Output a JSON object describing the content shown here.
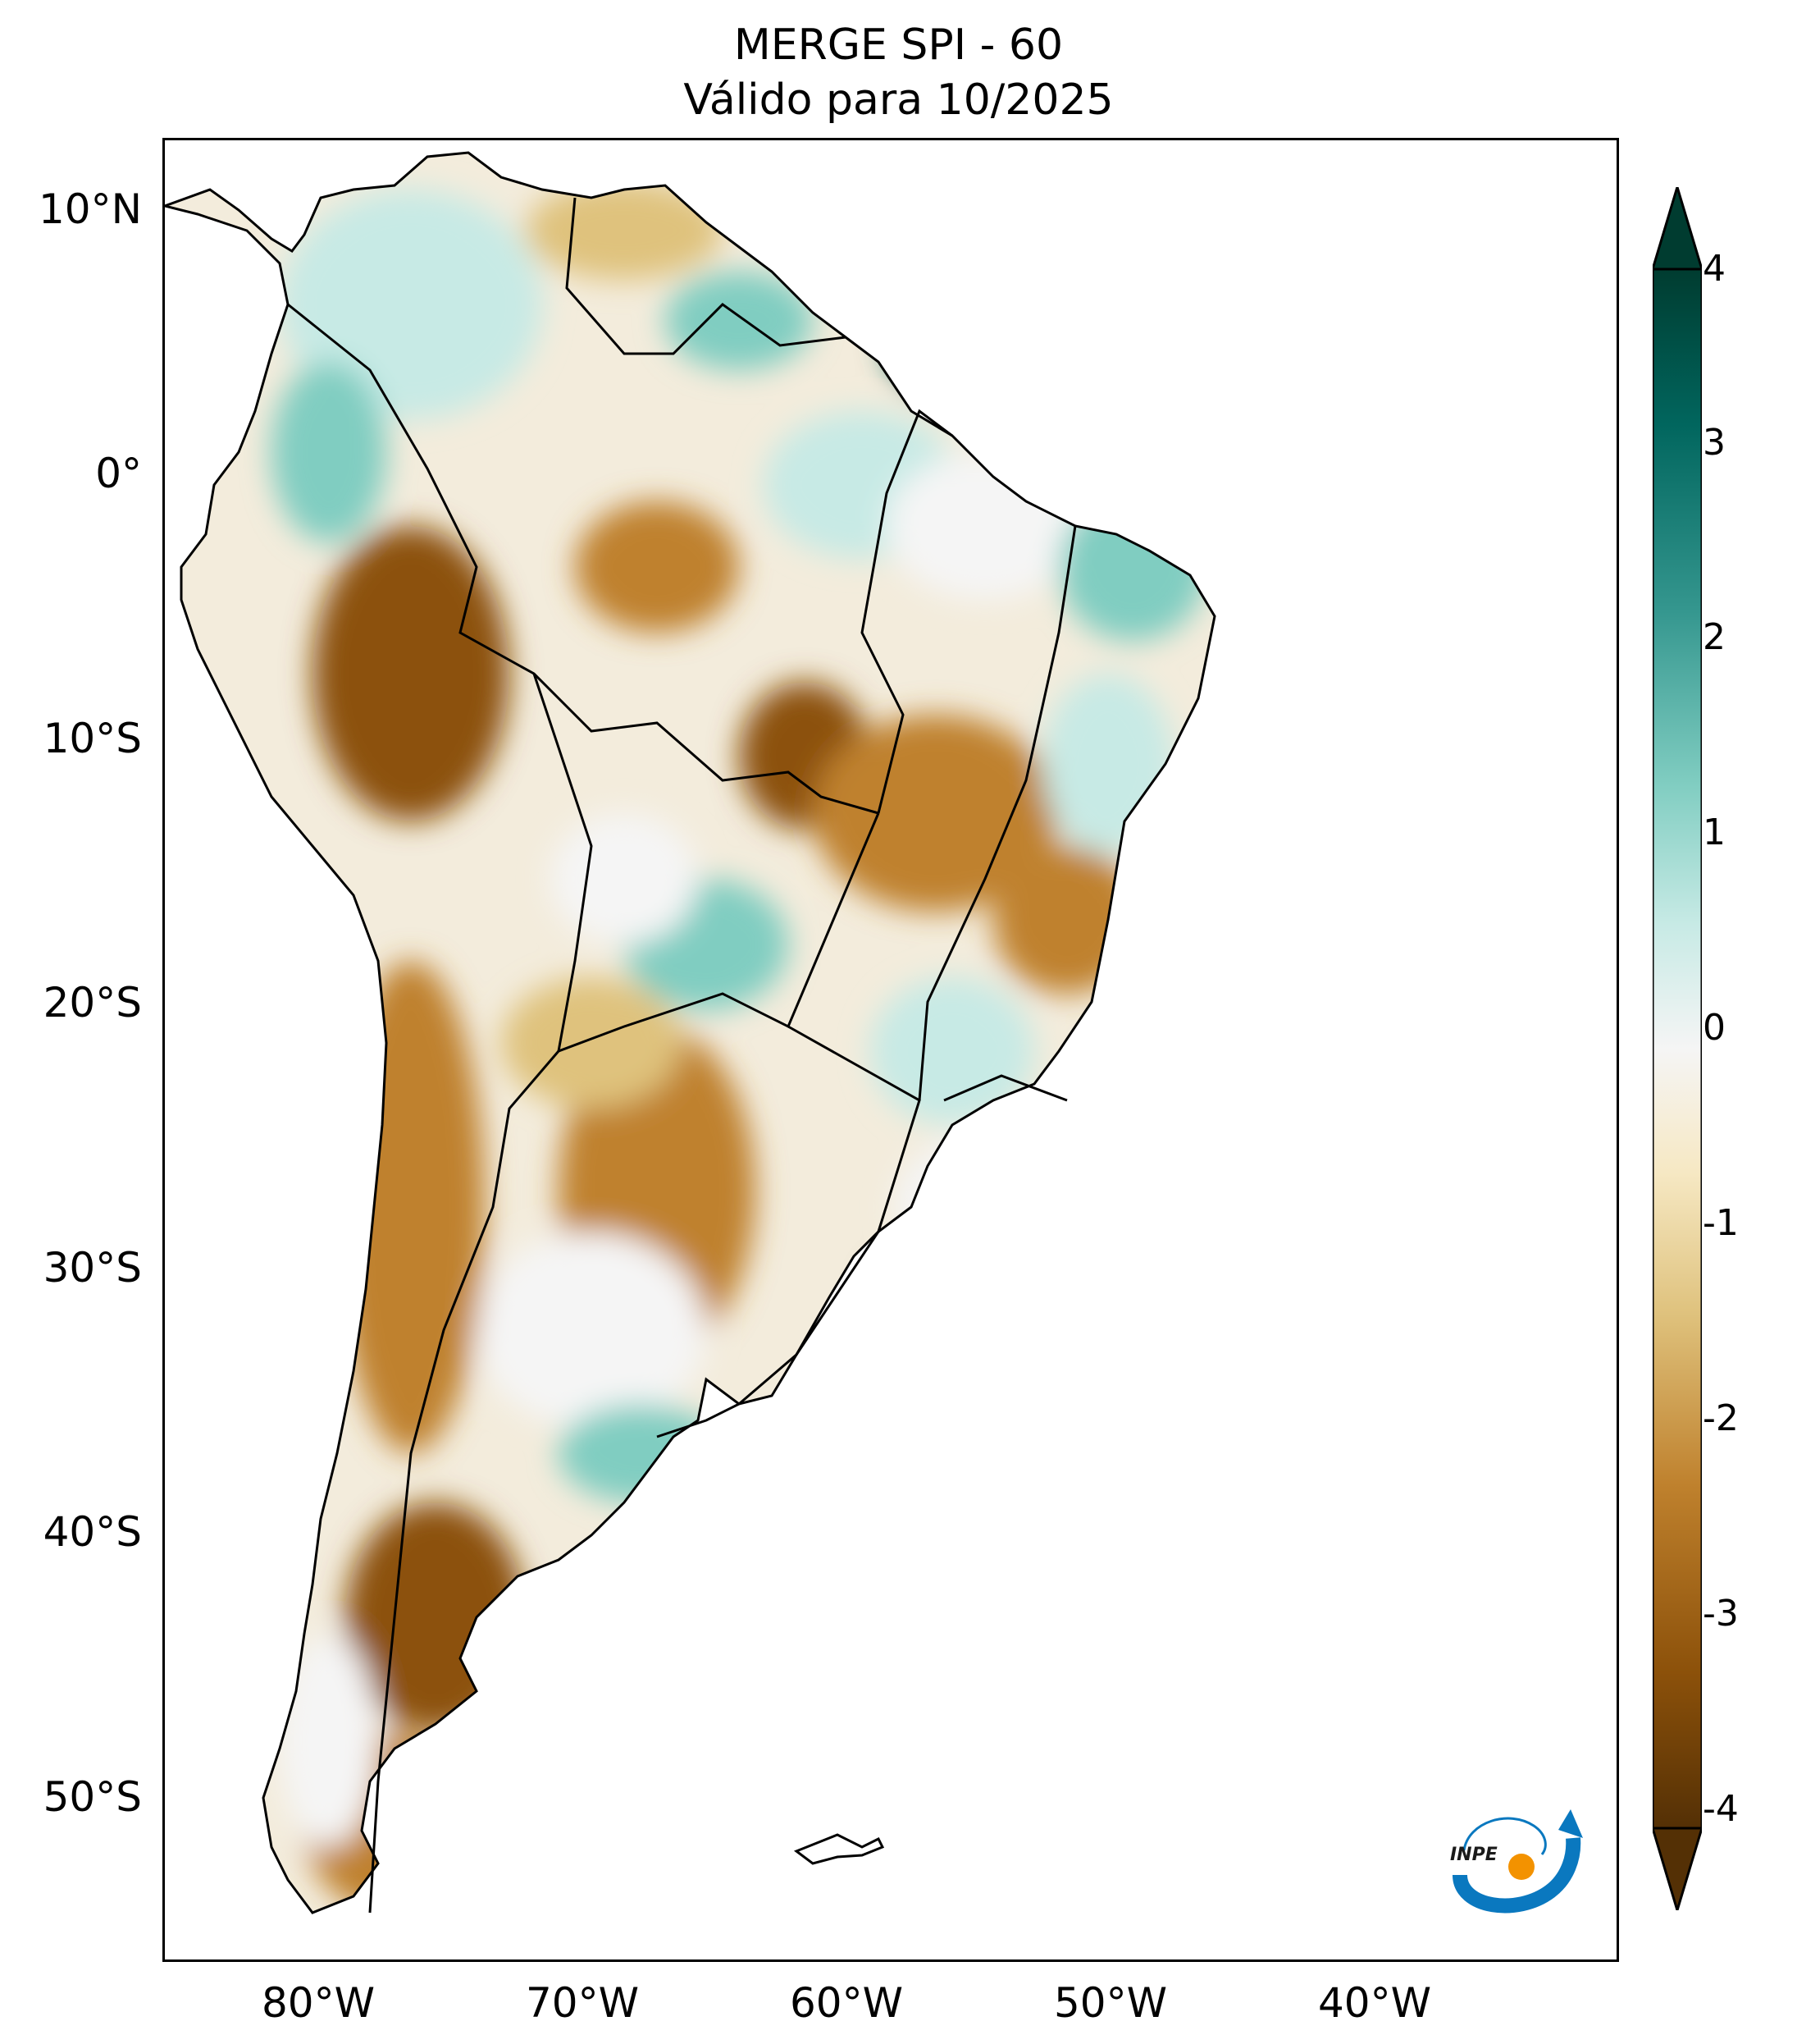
{
  "title": {
    "line1": "MERGE   SPI - 60",
    "line2": "Válido para 10/2025"
  },
  "axes": {
    "lat_ticks": [
      "10°N",
      "0°",
      "10°S",
      "20°S",
      "30°S",
      "40°S",
      "50°S"
    ],
    "lon_ticks": [
      "80°W",
      "70°W",
      "60°W",
      "50°W",
      "40°W"
    ]
  },
  "colorbar": {
    "labels": [
      "4",
      "3",
      "2",
      "1",
      "0",
      "-1",
      "-2",
      "-3",
      "-4"
    ],
    "colors": {
      "max": "#003c30",
      "wet_strong": "#01665e",
      "wet": "#35978f",
      "wet_light": "#80cdc1",
      "wet_pale": "#c7eae5",
      "neutral": "#f5f5f5",
      "dry_pale": "#f6e8c3",
      "dry_light": "#dfc27d",
      "dry": "#bf812d",
      "dry_strong": "#8c510a",
      "min": "#543005"
    }
  },
  "logo": {
    "text": "INPE"
  }
}
